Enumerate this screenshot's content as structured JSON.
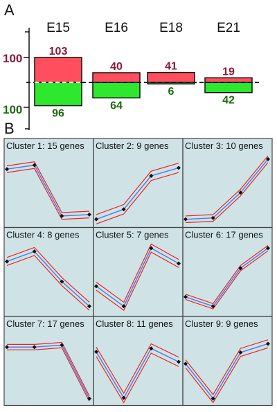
{
  "panel_a_letter": "A",
  "panel_b_letter": "B",
  "colors": {
    "up": "#ff4f5e",
    "down": "#2ee82e",
    "up_text": "#8b1a36",
    "down_text": "#1e6a12",
    "cell_bg": "#cfe3e6",
    "line_mean": "#4d7fe6",
    "line_band": "#ee2222",
    "marker": "#111111"
  },
  "chart_data": [
    {
      "type": "bar",
      "categories": [
        "E15",
        "E16",
        "E18",
        "E21"
      ],
      "series": [
        {
          "values": [
            103,
            40,
            41,
            19
          ]
        },
        {
          "values": [
            96,
            64,
            6,
            42
          ]
        }
      ],
      "y_tick_labels": [
        "100",
        "100"
      ],
      "ylim": [
        -100,
        100
      ]
    },
    {
      "type": "line",
      "x": [
        1,
        2,
        3,
        4
      ],
      "clusters": [
        {
          "title": "Cluster 1: 15 genes",
          "values": [
            0.8,
            0.86,
            0.1,
            0.12
          ],
          "band": 0.05
        },
        {
          "title": "Cluster 2: 9 genes",
          "values": [
            0.05,
            0.2,
            0.7,
            0.82
          ],
          "band": 0.07
        },
        {
          "title": "Cluster 3: 10 genes",
          "values": [
            0.05,
            0.07,
            0.45,
            0.95
          ],
          "band": 0.05
        },
        {
          "title": "Cluster 4: 8 genes",
          "values": [
            0.75,
            0.9,
            0.45,
            0.08
          ],
          "band": 0.06
        },
        {
          "title": "Cluster 5: 7 genes",
          "values": [
            0.38,
            0.08,
            0.95,
            0.72
          ],
          "band": 0.06
        },
        {
          "title": "Cluster 6: 17 genes",
          "values": [
            0.22,
            0.08,
            0.65,
            0.95
          ],
          "band": 0.04
        },
        {
          "title": "Cluster 7: 17 genes",
          "values": [
            0.8,
            0.8,
            0.83,
            0.03
          ],
          "band": 0.04
        },
        {
          "title": "Cluster 8: 11 genes",
          "values": [
            0.73,
            0.04,
            0.78,
            0.58
          ],
          "band": 0.07
        },
        {
          "title": "Cluster 9: 9 genes",
          "values": [
            0.55,
            0.03,
            0.72,
            0.85
          ],
          "band": 0.06
        }
      ]
    }
  ]
}
